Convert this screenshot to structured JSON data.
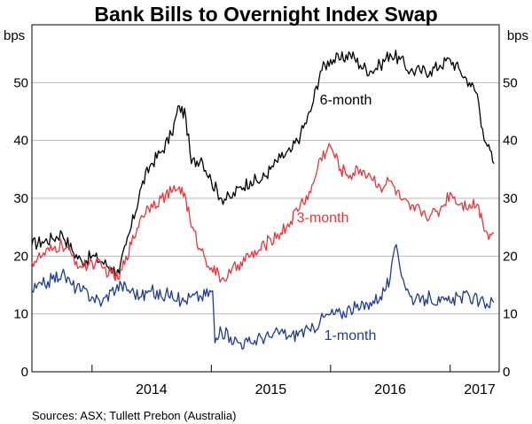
{
  "chart_data": {
    "type": "line",
    "title": "Bank Bills to Overnight Index Swap",
    "units": {
      "left": "bps",
      "right": "bps"
    },
    "ylim": [
      0,
      60
    ],
    "yticks": [
      0,
      10,
      20,
      30,
      40,
      50
    ],
    "xlim": [
      "2013-07-01",
      "2017-05-31"
    ],
    "x_ticks": [
      "2014",
      "2015",
      "2016",
      "2017"
    ],
    "grid": true,
    "legend": "inline labels",
    "source": "Sources: ASX; Tullett Prebon (Australia)",
    "series": [
      {
        "name": "6-month",
        "color": "#000000",
        "points": [
          [
            "2013-07-01",
            22
          ],
          [
            "2013-08-01",
            22.5
          ],
          [
            "2013-09-01",
            23
          ],
          [
            "2013-10-01",
            24
          ],
          [
            "2013-11-01",
            21
          ],
          [
            "2013-12-01",
            19
          ],
          [
            "2014-01-01",
            20
          ],
          [
            "2014-02-01",
            19
          ],
          [
            "2014-03-01",
            18
          ],
          [
            "2014-03-25",
            17
          ],
          [
            "2014-04-15",
            22
          ],
          [
            "2014-05-01",
            25
          ],
          [
            "2014-06-01",
            32
          ],
          [
            "2014-07-01",
            36
          ],
          [
            "2014-08-01",
            38
          ],
          [
            "2014-09-01",
            41
          ],
          [
            "2014-09-25",
            46
          ],
          [
            "2014-10-15",
            44
          ],
          [
            "2014-11-01",
            36
          ],
          [
            "2014-12-01",
            37
          ],
          [
            "2015-01-01",
            33
          ],
          [
            "2015-02-01",
            30
          ],
          [
            "2015-03-01",
            30
          ],
          [
            "2015-04-01",
            32
          ],
          [
            "2015-05-01",
            33
          ],
          [
            "2015-06-01",
            33
          ],
          [
            "2015-07-01",
            35
          ],
          [
            "2015-08-01",
            37
          ],
          [
            "2015-09-01",
            38
          ],
          [
            "2015-10-01",
            41
          ],
          [
            "2015-11-01",
            45
          ],
          [
            "2015-12-01",
            52
          ],
          [
            "2016-01-01",
            54
          ],
          [
            "2016-02-01",
            54
          ],
          [
            "2016-03-01",
            55
          ],
          [
            "2016-04-01",
            53
          ],
          [
            "2016-05-01",
            52
          ],
          [
            "2016-06-01",
            53
          ],
          [
            "2016-07-01",
            55
          ],
          [
            "2016-08-01",
            54
          ],
          [
            "2016-09-01",
            52
          ],
          [
            "2016-10-01",
            52
          ],
          [
            "2016-11-01",
            52
          ],
          [
            "2016-12-01",
            53
          ],
          [
            "2017-01-01",
            54
          ],
          [
            "2017-02-01",
            52
          ],
          [
            "2017-03-01",
            50
          ],
          [
            "2017-03-25",
            48
          ],
          [
            "2017-04-10",
            42
          ],
          [
            "2017-04-25",
            39
          ],
          [
            "2017-05-15",
            36
          ]
        ]
      },
      {
        "name": "3-month",
        "color": "#e8363f",
        "points": [
          [
            "2013-07-01",
            19
          ],
          [
            "2013-08-01",
            20
          ],
          [
            "2013-09-01",
            21
          ],
          [
            "2013-10-01",
            22
          ],
          [
            "2013-11-01",
            20
          ],
          [
            "2013-12-01",
            18
          ],
          [
            "2014-01-01",
            19
          ],
          [
            "2014-02-01",
            18
          ],
          [
            "2014-03-01",
            17
          ],
          [
            "2014-03-25",
            16
          ],
          [
            "2014-04-15",
            20
          ],
          [
            "2014-05-01",
            22
          ],
          [
            "2014-06-01",
            27
          ],
          [
            "2014-07-01",
            29
          ],
          [
            "2014-08-01",
            30
          ],
          [
            "2014-09-01",
            31
          ],
          [
            "2014-09-25",
            32
          ],
          [
            "2014-10-15",
            30
          ],
          [
            "2014-11-01",
            25
          ],
          [
            "2014-12-01",
            21
          ],
          [
            "2015-01-01",
            18
          ],
          [
            "2015-02-01",
            16
          ],
          [
            "2015-03-01",
            17
          ],
          [
            "2015-04-01",
            19
          ],
          [
            "2015-05-01",
            20
          ],
          [
            "2015-06-01",
            21
          ],
          [
            "2015-07-01",
            23
          ],
          [
            "2015-08-01",
            24
          ],
          [
            "2015-09-01",
            26
          ],
          [
            "2015-10-01",
            29
          ],
          [
            "2015-11-01",
            31
          ],
          [
            "2015-12-01",
            37
          ],
          [
            "2016-01-01",
            39
          ],
          [
            "2016-02-01",
            35
          ],
          [
            "2016-03-01",
            34
          ],
          [
            "2016-04-01",
            35
          ],
          [
            "2016-05-01",
            34
          ],
          [
            "2016-06-01",
            32
          ],
          [
            "2016-07-01",
            33
          ],
          [
            "2016-08-01",
            30
          ],
          [
            "2016-09-01",
            28
          ],
          [
            "2016-10-01",
            28
          ],
          [
            "2016-11-01",
            27
          ],
          [
            "2016-12-01",
            28
          ],
          [
            "2017-01-01",
            31
          ],
          [
            "2017-02-01",
            29
          ],
          [
            "2017-03-01",
            29
          ],
          [
            "2017-03-25",
            29
          ],
          [
            "2017-04-10",
            26
          ],
          [
            "2017-04-25",
            24
          ],
          [
            "2017-05-15",
            24
          ]
        ]
      },
      {
        "name": "1-month",
        "color": "#1f3d95",
        "points": [
          [
            "2013-07-01",
            14
          ],
          [
            "2013-08-01",
            15
          ],
          [
            "2013-09-01",
            16
          ],
          [
            "2013-10-01",
            17
          ],
          [
            "2013-11-01",
            15
          ],
          [
            "2013-12-01",
            14
          ],
          [
            "2014-01-01",
            13
          ],
          [
            "2014-02-01",
            12
          ],
          [
            "2014-03-01",
            14
          ],
          [
            "2014-04-01",
            15
          ],
          [
            "2014-05-01",
            14
          ],
          [
            "2014-06-01",
            13
          ],
          [
            "2014-07-01",
            14
          ],
          [
            "2014-08-01",
            13
          ],
          [
            "2014-09-01",
            14
          ],
          [
            "2014-10-01",
            12
          ],
          [
            "2014-11-01",
            13
          ],
          [
            "2014-12-01",
            13
          ],
          [
            "2015-01-05",
            14
          ],
          [
            "2015-01-12",
            5
          ],
          [
            "2015-02-01",
            7
          ],
          [
            "2015-03-01",
            6
          ],
          [
            "2015-04-01",
            5
          ],
          [
            "2015-05-01",
            5
          ],
          [
            "2015-06-01",
            6
          ],
          [
            "2015-07-01",
            6
          ],
          [
            "2015-08-01",
            7
          ],
          [
            "2015-09-01",
            6
          ],
          [
            "2015-10-01",
            7
          ],
          [
            "2015-11-01",
            7
          ],
          [
            "2015-12-01",
            9
          ],
          [
            "2016-01-01",
            10
          ],
          [
            "2016-02-01",
            10
          ],
          [
            "2016-03-01",
            11
          ],
          [
            "2016-04-01",
            11
          ],
          [
            "2016-05-01",
            12
          ],
          [
            "2016-06-01",
            13
          ],
          [
            "2016-07-01",
            16
          ],
          [
            "2016-07-20",
            22
          ],
          [
            "2016-08-10",
            16
          ],
          [
            "2016-09-01",
            13
          ],
          [
            "2016-10-01",
            12
          ],
          [
            "2016-11-01",
            13
          ],
          [
            "2016-12-01",
            12
          ],
          [
            "2017-01-01",
            12
          ],
          [
            "2017-02-01",
            13
          ],
          [
            "2017-03-01",
            13
          ],
          [
            "2017-04-01",
            12
          ],
          [
            "2017-05-15",
            12
          ]
        ]
      }
    ]
  }
}
